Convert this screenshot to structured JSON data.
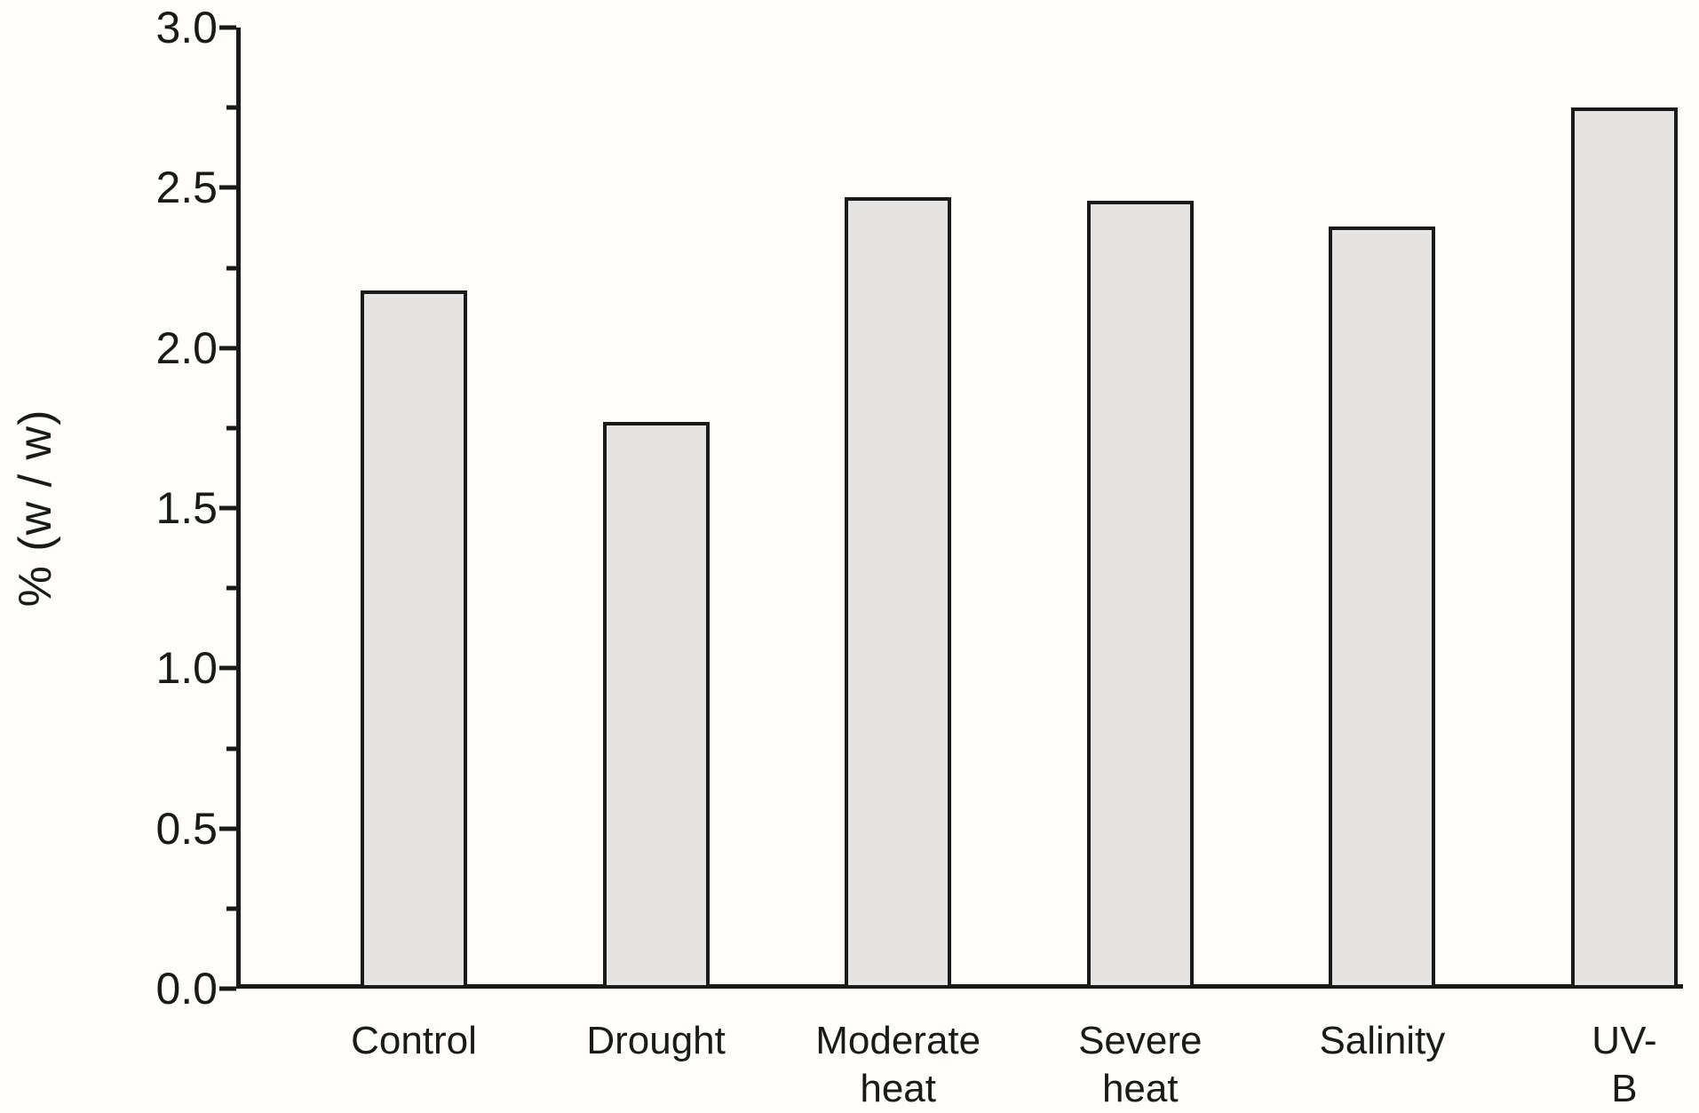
{
  "chart_data": {
    "type": "bar",
    "title": "",
    "xlabel": "",
    "ylabel": "% (w / w)",
    "categories": [
      "Control",
      "Drought",
      "Moderate\nheat",
      "Severe\nheat",
      "Salinity",
      "UV-B"
    ],
    "values": [
      2.18,
      1.77,
      2.47,
      2.46,
      2.38,
      2.75
    ],
    "ylim": [
      0,
      3.0
    ],
    "yticks_major": [
      {
        "value": 0.0,
        "label": "0.0"
      },
      {
        "value": 0.5,
        "label": "0.5"
      },
      {
        "value": 1.0,
        "label": "1.0"
      },
      {
        "value": 1.5,
        "label": "1.5"
      },
      {
        "value": 2.0,
        "label": "2.0"
      },
      {
        "value": 2.5,
        "label": "2.5"
      },
      {
        "value": 3.0,
        "label": "3.0"
      }
    ],
    "yticks_minor": [
      0.25,
      0.75,
      1.25,
      1.75,
      2.25,
      2.75
    ],
    "grid": false,
    "legend": null,
    "colors": {
      "background": "#fffefa",
      "bar_fill": "#e4e3e1",
      "bar_border": "#1a1a1a",
      "axis": "#1a1a1a",
      "text": "#1a1a1a"
    }
  }
}
